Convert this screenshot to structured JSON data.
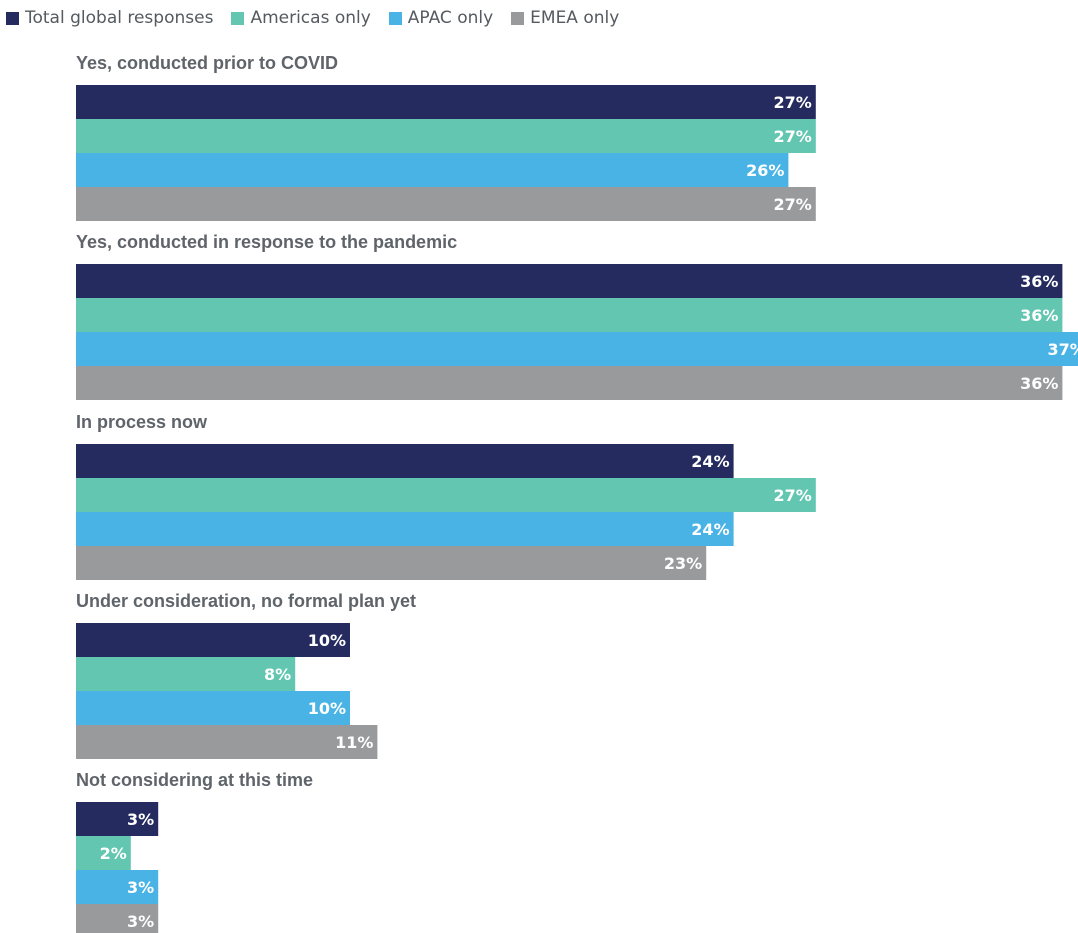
{
  "chart_data": {
    "type": "bar",
    "orientation": "horizontal",
    "categories": [
      "Yes, conducted prior to COVID",
      "Yes, conducted in response to the pandemic",
      "In process now",
      "Under consideration, no formal plan yet",
      "Not considering at this time"
    ],
    "series": [
      {
        "name": "Total global responses",
        "color": "#252b5f",
        "values": [
          27,
          36,
          24,
          10,
          3
        ]
      },
      {
        "name": "Americas only",
        "color": "#62c6b1",
        "values": [
          27,
          36,
          27,
          8,
          2
        ]
      },
      {
        "name": "APAC only",
        "color": "#4ab3e5",
        "values": [
          26,
          37,
          24,
          10,
          3
        ]
      },
      {
        "name": "EMEA only",
        "color": "#999a9c",
        "values": [
          27,
          36,
          23,
          11,
          3
        ]
      }
    ],
    "value_suffix": "%",
    "legend_position": "top-left",
    "grid": false,
    "axes_visible": false,
    "data_labels": "inside-end",
    "xlim": [
      0,
      37
    ]
  }
}
